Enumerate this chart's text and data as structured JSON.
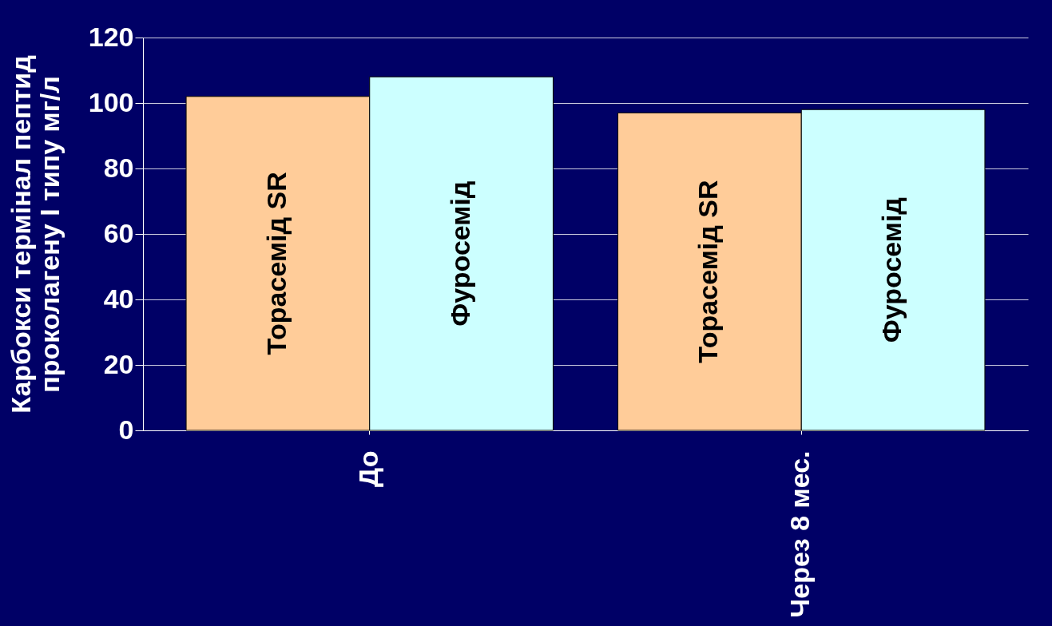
{
  "chart_data": {
    "type": "bar",
    "categories": [
      "До",
      "Через 8 мес."
    ],
    "ylabel": "Карбокси термінал пептид\nпроколагену І типу  мг/л",
    "series": [
      {
        "name": "Торасемід SR",
        "color": "#ffcc99",
        "values": [
          102,
          97
        ]
      },
      {
        "name": "Фуросемід",
        "color": "#ccffff",
        "values": [
          108,
          98
        ]
      }
    ],
    "ylim": [
      0,
      120
    ],
    "yticks": [
      0,
      20,
      40,
      60,
      80,
      100,
      120
    ],
    "grid": "y",
    "legend": false
  }
}
